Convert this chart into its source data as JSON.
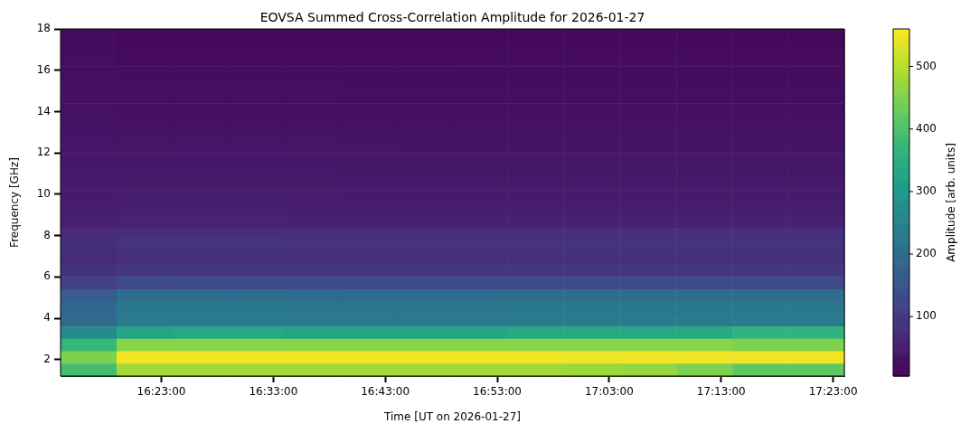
{
  "chart_data": {
    "type": "heatmap",
    "title": "EOVSA Summed Cross-Correlation Amplitude for 2026-01-27",
    "xlabel": "Time [UT on 2026-01-27]",
    "ylabel": "Frequency [GHz]",
    "clabel": "Amplitude [arb. units]",
    "xlim": [
      "2026-01-27T16:14",
      "2026-01-27T17:24"
    ],
    "xticks": [
      {
        "value": "2026-01-27T16:23",
        "label": "16:23:00"
      },
      {
        "value": "2026-01-27T16:33",
        "label": "16:33:00"
      },
      {
        "value": "2026-01-27T16:43",
        "label": "16:43:00"
      },
      {
        "value": "2026-01-27T16:53",
        "label": "16:53:00"
      },
      {
        "value": "2026-01-27T17:03",
        "label": "17:03:00"
      },
      {
        "value": "2026-01-27T17:13",
        "label": "17:13:00"
      },
      {
        "value": "2026-01-27T17:23",
        "label": "17:23:00"
      }
    ],
    "ylim": [
      1.2,
      18
    ],
    "yticks": [
      2,
      4,
      6,
      8,
      10,
      12,
      14,
      16,
      18
    ],
    "clim": [
      5,
      560
    ],
    "cticks": [
      100,
      200,
      300,
      400,
      500
    ],
    "cells": [
      [
        22,
        18,
        18,
        18,
        18,
        18,
        18,
        18,
        18,
        18,
        18,
        18,
        18,
        18
      ],
      [
        23,
        19,
        19,
        19,
        19,
        19,
        19,
        19,
        19,
        19,
        19,
        19,
        19,
        19
      ],
      [
        25,
        21,
        21,
        21,
        21,
        21,
        21,
        21,
        21,
        21,
        21,
        21,
        21,
        21
      ],
      [
        26,
        23,
        23,
        23,
        23,
        23,
        23,
        22,
        22,
        22,
        22,
        22,
        22,
        22
      ],
      [
        28,
        25,
        25,
        25,
        25,
        24,
        24,
        24,
        24,
        24,
        24,
        24,
        24,
        24
      ],
      [
        30,
        27,
        27,
        27,
        27,
        26,
        26,
        26,
        26,
        26,
        26,
        26,
        26,
        26
      ],
      [
        31,
        29,
        29,
        29,
        29,
        28,
        28,
        28,
        28,
        28,
        28,
        28,
        28,
        28
      ],
      [
        33,
        31,
        31,
        31,
        31,
        30,
        30,
        30,
        30,
        30,
        30,
        30,
        30,
        30
      ],
      [
        35,
        34,
        34,
        34,
        34,
        33,
        33,
        33,
        33,
        33,
        33,
        33,
        33,
        33
      ],
      [
        37,
        36,
        37,
        37,
        36,
        36,
        35,
        35,
        35,
        35,
        35,
        35,
        35,
        35
      ],
      [
        39,
        39,
        40,
        40,
        39,
        38,
        38,
        38,
        38,
        38,
        38,
        38,
        38,
        38
      ],
      [
        42,
        42,
        42,
        42,
        41,
        40,
        40,
        40,
        40,
        40,
        40,
        40,
        40,
        40
      ],
      [
        44,
        45,
        45,
        45,
        44,
        43,
        43,
        43,
        43,
        43,
        43,
        43,
        43,
        43
      ],
      [
        46,
        48,
        48,
        48,
        47,
        46,
        46,
        46,
        46,
        46,
        46,
        46,
        46,
        46
      ],
      [
        50,
        52,
        52,
        52,
        51,
        50,
        50,
        50,
        50,
        50,
        50,
        50,
        50,
        50
      ],
      [
        54,
        58,
        58,
        58,
        57,
        56,
        56,
        56,
        56,
        56,
        56,
        56,
        56,
        56
      ],
      [
        70,
        78,
        78,
        78,
        78,
        77,
        77,
        78,
        78,
        80,
        80,
        80,
        80,
        80
      ],
      [
        76,
        85,
        85,
        85,
        84,
        84,
        84,
        84,
        84,
        85,
        85,
        85,
        85,
        85
      ],
      [
        72,
        80,
        80,
        80,
        80,
        80,
        80,
        80,
        80,
        80,
        80,
        80,
        80,
        80
      ],
      [
        84,
        95,
        95,
        95,
        94,
        94,
        94,
        94,
        94,
        94,
        94,
        94,
        94,
        94
      ],
      [
        112,
        130,
        130,
        130,
        130,
        128,
        128,
        128,
        128,
        128,
        128,
        128,
        128,
        128
      ],
      [
        168,
        200,
        200,
        200,
        198,
        198,
        198,
        198,
        200,
        200,
        200,
        200,
        200,
        200
      ],
      [
        188,
        225,
        225,
        225,
        222,
        222,
        222,
        222,
        225,
        225,
        225,
        225,
        225,
        225
      ],
      [
        196,
        235,
        235,
        235,
        232,
        232,
        232,
        232,
        235,
        235,
        235,
        235,
        235,
        235
      ],
      [
        272,
        330,
        335,
        335,
        330,
        330,
        330,
        330,
        340,
        340,
        335,
        340,
        365,
        365
      ],
      [
        376,
        460,
        460,
        460,
        460,
        460,
        460,
        460,
        460,
        460,
        460,
        460,
        450,
        450
      ],
      [
        448,
        550,
        550,
        550,
        550,
        550,
        550,
        550,
        550,
        550,
        550,
        550,
        550,
        550
      ],
      [
        392,
        480,
        480,
        480,
        480,
        480,
        480,
        480,
        480,
        475,
        470,
        450,
        420,
        420
      ]
    ]
  }
}
